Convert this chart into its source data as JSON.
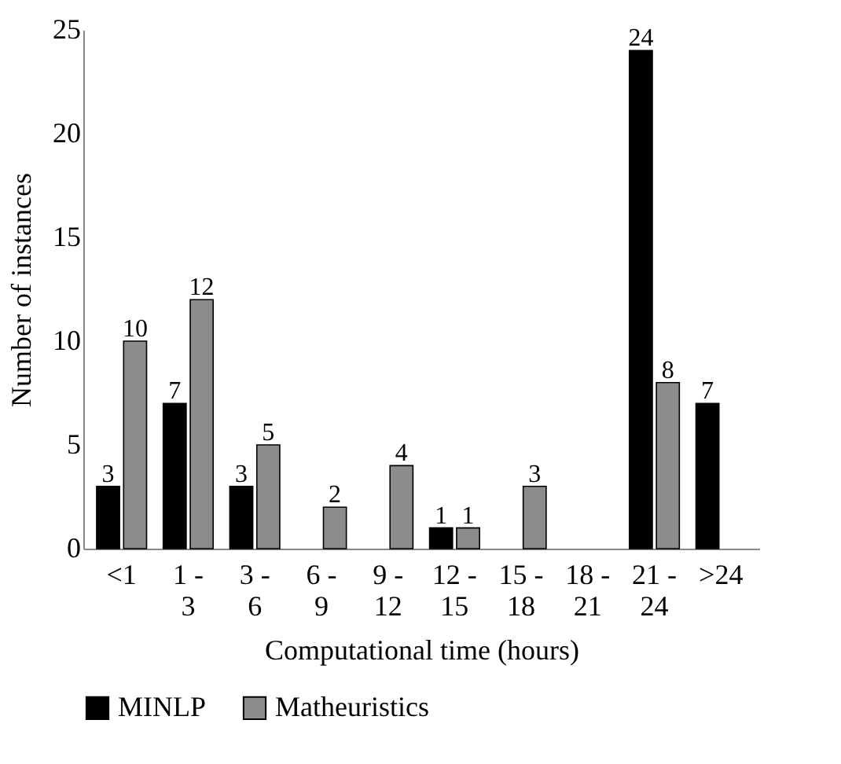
{
  "chart_data": {
    "type": "bar",
    "xlabel": "Computational time (hours)",
    "ylabel": "Number of instances",
    "categories": [
      "<1",
      "1 - 3",
      "3 - 6",
      "6 - 9",
      "9 - 12",
      "12 - 15",
      "15 - 18",
      "18 - 21",
      "21 - 24",
      ">24"
    ],
    "series": [
      {
        "name": "MINLP",
        "color": "#000000",
        "values": [
          3,
          7,
          3,
          0,
          0,
          1,
          0,
          0,
          24,
          7
        ],
        "value_labels": [
          "3",
          "7",
          "3",
          null,
          null,
          "1",
          null,
          null,
          "24",
          "7"
        ]
      },
      {
        "name": "Matheuristics",
        "color": "#8c8c8c",
        "values": [
          10,
          12,
          5,
          2,
          4,
          1,
          3,
          0,
          8,
          0
        ],
        "value_labels": [
          "10",
          "12",
          "5",
          "2",
          "4",
          "1",
          "3",
          null,
          "8",
          null
        ]
      }
    ],
    "ylim": [
      0,
      25
    ],
    "yticks": [
      0,
      5,
      10,
      15,
      20,
      25
    ],
    "grid": false,
    "legend": "bottom"
  }
}
